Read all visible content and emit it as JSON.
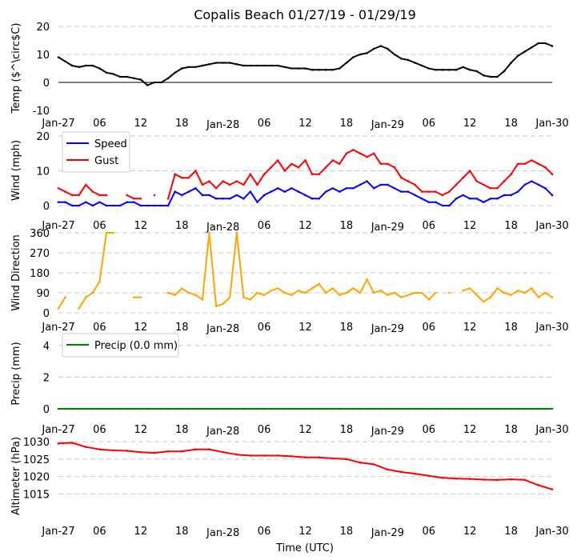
{
  "title": "Copalis Beach 01/27/19 - 01/29/19",
  "xlabel": "Time (UTC)",
  "x_tick_labels": [
    "Jan-27",
    "06",
    "12",
    "18",
    "Jan-28",
    "06",
    "12",
    "18",
    "Jan-29",
    "06",
    "12",
    "18",
    "Jan-30"
  ],
  "x_range_hours": [
    0,
    72
  ],
  "chart_data": [
    {
      "type": "line",
      "ylabel": "Temp ($^\\circ$C)",
      "ylim": [
        -10,
        20
      ],
      "yticks": [
        -10,
        0,
        10,
        20
      ],
      "grid": true,
      "zero_line": true,
      "x_step_hours": 1,
      "series": [
        {
          "color": "#000000",
          "values": [
            9,
            7.5,
            6,
            5.5,
            6,
            6,
            5,
            3.5,
            3,
            2,
            2,
            1.5,
            1,
            -1,
            0,
            0,
            1.5,
            3.5,
            5,
            5.5,
            5.5,
            6,
            6.5,
            7,
            7,
            7,
            6.5,
            6,
            6,
            6,
            6,
            6,
            6,
            5.5,
            5,
            5,
            5,
            4.5,
            4.5,
            4.5,
            4.5,
            5,
            7,
            9,
            10,
            10.5,
            12,
            13,
            12,
            10,
            8.5,
            8,
            7,
            6,
            5,
            4.5,
            4.5,
            4.5,
            4.5,
            5.5,
            4.5,
            4,
            2.5,
            2,
            2,
            4,
            7,
            9.5,
            11,
            12.5,
            14,
            14,
            13
          ]
        }
      ]
    },
    {
      "type": "line",
      "ylabel": "Wind (mph)",
      "ylim": [
        0,
        20
      ],
      "yticks": [
        0,
        10,
        20
      ],
      "grid": true,
      "legend": "top-left",
      "x_step_hours": 1,
      "series": [
        {
          "name": "Speed",
          "color": "#0000ff",
          "values": [
            1,
            1,
            0,
            0,
            1,
            0,
            1,
            0,
            0,
            0,
            1,
            1,
            0,
            0,
            0,
            0,
            0,
            4,
            3,
            4,
            5,
            3,
            3,
            2,
            2,
            2,
            3,
            2,
            4,
            1,
            3,
            4,
            5,
            4,
            5,
            4,
            3,
            2,
            2,
            4,
            5,
            4,
            5,
            5,
            6,
            7,
            5,
            6,
            6,
            5,
            4,
            4,
            3,
            2,
            1,
            1,
            0,
            0,
            2,
            3,
            2,
            2,
            1,
            2,
            2,
            3,
            3,
            4,
            6,
            7,
            6,
            5,
            3
          ]
        },
        {
          "name": "Gust",
          "color": "#ff0000",
          "values": [
            5,
            4,
            3,
            3,
            6,
            4,
            3,
            3,
            null,
            null,
            3,
            2,
            2,
            null,
            3,
            null,
            2,
            9,
            8,
            8,
            10,
            6,
            7,
            5,
            7,
            6,
            7,
            6,
            9,
            6,
            9,
            11,
            13,
            10,
            12,
            11,
            13,
            9,
            9,
            11,
            13,
            12,
            15,
            16,
            15,
            14,
            15,
            12,
            12,
            11,
            8,
            7,
            6,
            4,
            4,
            4,
            3,
            4,
            6,
            8,
            10,
            7,
            6,
            5,
            5,
            7,
            9,
            12,
            12,
            13,
            12,
            11,
            9
          ]
        }
      ]
    },
    {
      "type": "line",
      "ylabel": "Wind Direction",
      "ylim": [
        0,
        360
      ],
      "yticks": [
        0,
        90,
        180,
        270,
        360
      ],
      "grid": true,
      "x_step_hours": 1,
      "series": [
        {
          "color": "#ffa500",
          "values": [
            20,
            70,
            null,
            20,
            70,
            90,
            140,
            360,
            360,
            null,
            null,
            70,
            70,
            null,
            null,
            null,
            90,
            80,
            110,
            90,
            80,
            60,
            360,
            30,
            40,
            70,
            360,
            70,
            60,
            90,
            80,
            100,
            110,
            90,
            80,
            100,
            90,
            110,
            130,
            90,
            110,
            80,
            90,
            110,
            90,
            150,
            90,
            100,
            80,
            90,
            70,
            80,
            90,
            90,
            60,
            90,
            null,
            90,
            null,
            100,
            110,
            80,
            50,
            70,
            110,
            90,
            80,
            100,
            90,
            110,
            70,
            90,
            70
          ]
        }
      ]
    },
    {
      "type": "line",
      "ylabel": "Precip (mm)",
      "ylim": [
        0,
        4.5
      ],
      "yticks": [
        0,
        2,
        4
      ],
      "grid": true,
      "legend": "top-left",
      "x_step_hours": 1,
      "series": [
        {
          "name": "Precip (0.0 mm)",
          "color": "#008000",
          "values": [
            0,
            0,
            0,
            0,
            0,
            0,
            0,
            0,
            0,
            0,
            0,
            0,
            0,
            0,
            0,
            0,
            0,
            0,
            0,
            0,
            0,
            0,
            0,
            0,
            0,
            0,
            0,
            0,
            0,
            0,
            0,
            0,
            0,
            0,
            0,
            0,
            0,
            0,
            0,
            0,
            0,
            0,
            0,
            0,
            0,
            0,
            0,
            0,
            0,
            0,
            0,
            0,
            0,
            0,
            0,
            0,
            0,
            0,
            0,
            0,
            0,
            0,
            0,
            0,
            0,
            0,
            0,
            0,
            0,
            0,
            0,
            0,
            0
          ]
        }
      ]
    },
    {
      "type": "line",
      "ylabel": "Altimeter (hPa)",
      "ylim": [
        1013,
        1030.5
      ],
      "yticks": [
        1015,
        1020,
        1025,
        1030
      ],
      "grid": true,
      "x_step_hours": 2,
      "series": [
        {
          "color": "#ff0000",
          "values": [
            1029.5,
            1029.7,
            1028.5,
            1027.8,
            1027.5,
            1027.4,
            1027,
            1026.8,
            1027.2,
            1027.2,
            1027.8,
            1027.8,
            1027,
            1026.3,
            1026,
            1026,
            1026,
            1025.8,
            1025.5,
            1025.5,
            1025.2,
            1025,
            1024,
            1023.5,
            1022,
            1021.3,
            1020.8,
            1020.2,
            1019.6,
            1019.4,
            1019.3,
            1019.1,
            1019,
            1019.2,
            1019,
            1017.5,
            1016.3
          ]
        }
      ]
    }
  ]
}
